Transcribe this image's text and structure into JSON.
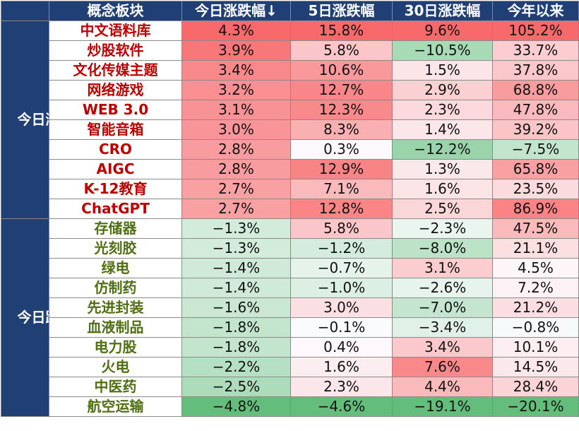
{
  "header": {
    "col_concept": "概念板块",
    "col_today": "今日涨跌幅↓",
    "col_5d": "5日涨跌幅",
    "col_30d": "30日涨跌幅",
    "col_ytd": "今年以来"
  },
  "groups": [
    {
      "label": "今日涨幅前十",
      "type": "up"
    },
    {
      "label": "今日跌幅前十",
      "type": "down"
    }
  ],
  "rows": [
    {
      "name": "中文语料库",
      "today": "4.3%",
      "d5": "15.8%",
      "d30": "9.6%",
      "ytd": "105.2%"
    },
    {
      "name": "炒股软件",
      "today": "3.9%",
      "d5": "5.8%",
      "d30": "−10.5%",
      "ytd": "33.7%"
    },
    {
      "name": "文化传媒主题",
      "today": "3.4%",
      "d5": "10.6%",
      "d30": "1.5%",
      "ytd": "37.8%"
    },
    {
      "name": "网络游戏",
      "today": "3.2%",
      "d5": "12.7%",
      "d30": "2.9%",
      "ytd": "68.8%"
    },
    {
      "name": "WEB 3.0",
      "today": "3.1%",
      "d5": "12.3%",
      "d30": "2.3%",
      "ytd": "47.8%"
    },
    {
      "name": "智能音箱",
      "today": "3.0%",
      "d5": "8.3%",
      "d30": "1.4%",
      "ytd": "39.2%"
    },
    {
      "name": "CRO",
      "today": "2.8%",
      "d5": "0.3%",
      "d30": "−12.2%",
      "ytd": "−7.5%"
    },
    {
      "name": "AIGC",
      "today": "2.8%",
      "d5": "12.9%",
      "d30": "1.3%",
      "ytd": "65.8%"
    },
    {
      "name": "K-12教育",
      "today": "2.7%",
      "d5": "7.1%",
      "d30": "1.6%",
      "ytd": "23.5%"
    },
    {
      "name": "ChatGPT",
      "today": "2.7%",
      "d5": "12.8%",
      "d30": "2.5%",
      "ytd": "86.9%"
    },
    {
      "name": "存储器",
      "today": "−1.3%",
      "d5": "5.8%",
      "d30": "−2.3%",
      "ytd": "47.5%"
    },
    {
      "name": "光刻胶",
      "today": "−1.3%",
      "d5": "−1.2%",
      "d30": "−8.0%",
      "ytd": "21.1%"
    },
    {
      "name": "绿电",
      "today": "−1.4%",
      "d5": "−0.7%",
      "d30": "3.1%",
      "ytd": "4.5%"
    },
    {
      "name": "仿制药",
      "today": "−1.4%",
      "d5": "−1.0%",
      "d30": "−2.6%",
      "ytd": "7.2%"
    },
    {
      "name": "先进封装",
      "today": "−1.6%",
      "d5": "3.0%",
      "d30": "−7.0%",
      "ytd": "21.2%"
    },
    {
      "name": "血液制品",
      "today": "−1.8%",
      "d5": "−0.1%",
      "d30": "−3.4%",
      "ytd": "−0.8%"
    },
    {
      "name": "电力股",
      "today": "−1.8%",
      "d5": "0.4%",
      "d30": "3.4%",
      "ytd": "10.1%"
    },
    {
      "name": "火电",
      "today": "−2.2%",
      "d5": "1.6%",
      "d30": "7.6%",
      "ytd": "14.5%"
    },
    {
      "name": "中医药",
      "today": "−2.5%",
      "d5": "2.3%",
      "d30": "4.4%",
      "ytd": "28.4%"
    },
    {
      "name": "航空运输",
      "today": "−4.8%",
      "d5": "−4.6%",
      "d30": "−19.1%",
      "ytd": "−20.1%"
    }
  ],
  "colors": {
    "header_bg": "#1f3f75",
    "up_text": "#c00000",
    "down_text": "#4f6f12",
    "positive_max": "#f8696b",
    "negative_max": "#63be7b"
  }
}
